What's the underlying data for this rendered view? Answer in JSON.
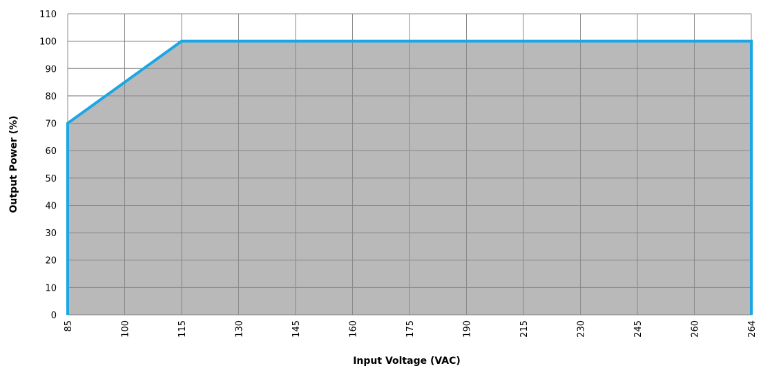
{
  "chart_data": {
    "type": "area",
    "xlabel": "Input Voltage (VAC)",
    "ylabel": "Output Power (%)",
    "x_categories": [
      "85",
      "100",
      "115",
      "130",
      "145",
      "160",
      "175",
      "190",
      "215",
      "230",
      "245",
      "260",
      "264"
    ],
    "y_ticks": [
      "0",
      "10",
      "20",
      "30",
      "40",
      "50",
      "60",
      "70",
      "80",
      "90",
      "100",
      "110"
    ],
    "ylim": [
      0,
      110
    ],
    "grid": true,
    "series": [
      {
        "x_index": [
          0,
          2,
          12
        ],
        "y": [
          70,
          100,
          100
        ]
      }
    ],
    "colors": {
      "fill": "#b9b9b9",
      "line": "#1aa7e3",
      "grid": "#888888"
    }
  }
}
